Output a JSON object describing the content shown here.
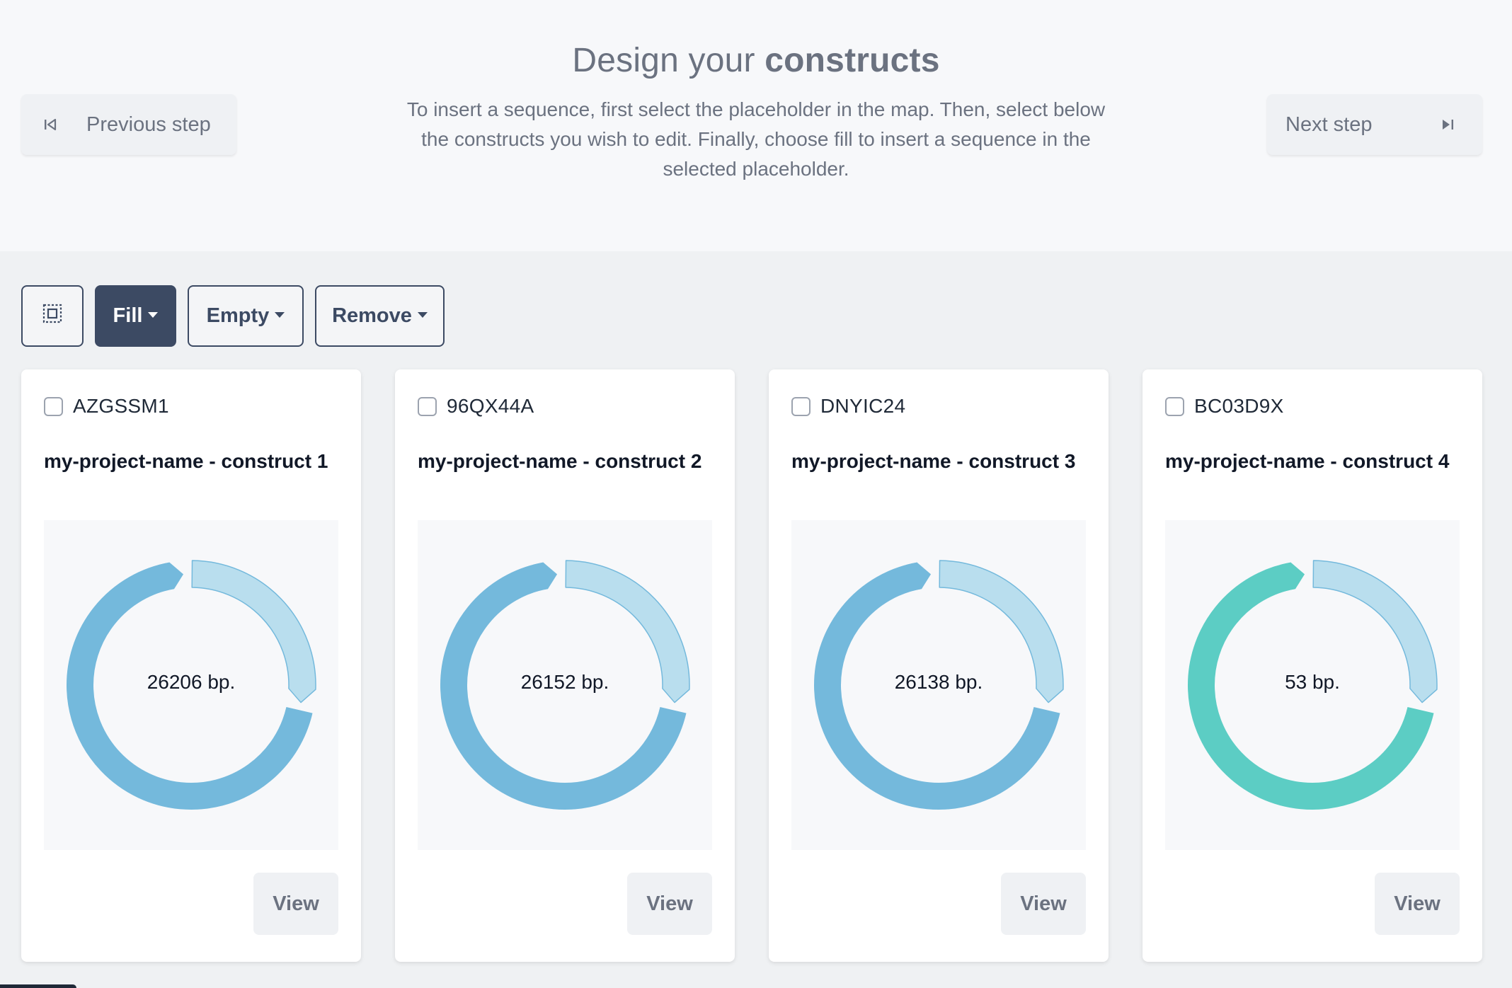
{
  "header": {
    "title_prefix": "Design your",
    "title_bold": "constructs",
    "subtitle": "To insert a sequence, first select the placeholder in the map. Then, select below the constructs you wish to edit. Finally, choose fill to insert a sequence in the selected placeholder.",
    "prev_label": "Previous step",
    "next_label": "Next step"
  },
  "toolbar": {
    "fill_label": "Fill",
    "empty_label": "Empty",
    "remove_label": "Remove"
  },
  "colors": {
    "ring_blue": "#74b9dc",
    "ring_teal": "#5ccdc4",
    "placeholder_fill": "#b9deee",
    "placeholder_stroke": "#74b9dc",
    "dark_button": "#3c4a63"
  },
  "cards": [
    {
      "id": "AZGSSM1",
      "name": "my-project-name - construct 1",
      "length": "26206 bp.",
      "ring_color": "#74b9dc",
      "view_label": "View"
    },
    {
      "id": "96QX44A",
      "name": "my-project-name - construct 2",
      "length": "26152 bp.",
      "ring_color": "#74b9dc",
      "view_label": "View"
    },
    {
      "id": "DNYIC24",
      "name": "my-project-name - construct 3",
      "length": "26138 bp.",
      "ring_color": "#74b9dc",
      "view_label": "View"
    },
    {
      "id": "BC03D9X",
      "name": "my-project-name - construct 4",
      "length": "53 bp.",
      "ring_color": "#5ccdc4",
      "view_label": "View"
    }
  ]
}
